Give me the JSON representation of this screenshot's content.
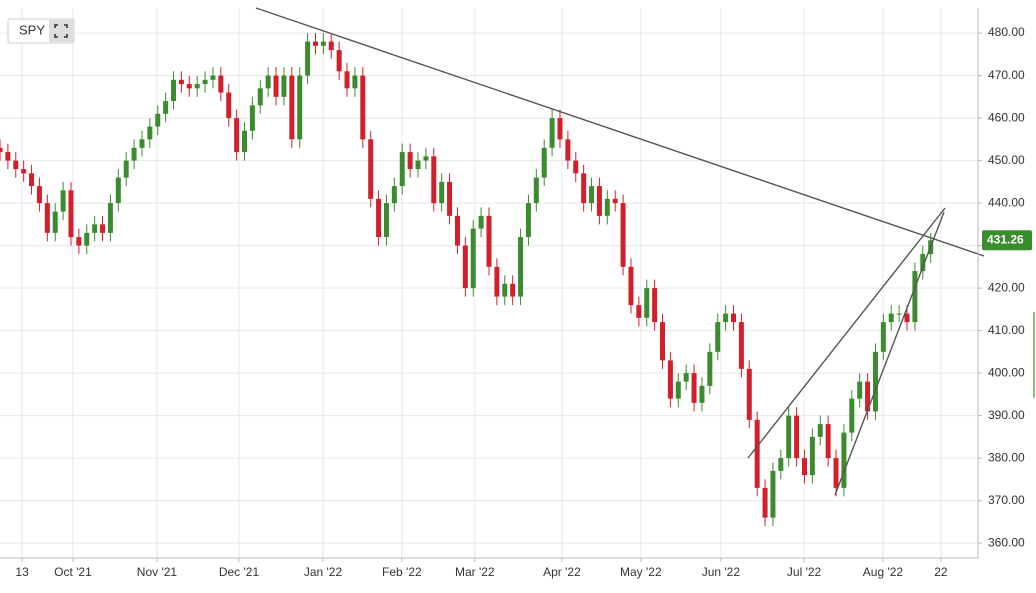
{
  "chart_data": {
    "type": "candlestick",
    "symbol": "SPY",
    "x": [
      0,
      2,
      4,
      6,
      8,
      10,
      12,
      14,
      16,
      18,
      20,
      22,
      24,
      26,
      28,
      30,
      32,
      34,
      36,
      38,
      40,
      42,
      44,
      46,
      48,
      50,
      52,
      54,
      56,
      58,
      60,
      62,
      64,
      66,
      68,
      70,
      72,
      74,
      76,
      78,
      80,
      82,
      84,
      86,
      88,
      90,
      92,
      94,
      96,
      98,
      100,
      102,
      104,
      106,
      108,
      110,
      112,
      114,
      116,
      118,
      120,
      122,
      124,
      126,
      128,
      130,
      132,
      134,
      136,
      138,
      140,
      142,
      144,
      146,
      148,
      150,
      152,
      154,
      156,
      158,
      160,
      162,
      164,
      166,
      168,
      170,
      172,
      174,
      176,
      178,
      180,
      182,
      184,
      186,
      188,
      190,
      192,
      194,
      196,
      198,
      200,
      202,
      204,
      206,
      208,
      210,
      212,
      214,
      216,
      218,
      220,
      222,
      224,
      226,
      228,
      230,
      232,
      234,
      236
    ],
    "open": [
      453,
      452,
      450,
      448,
      447,
      444,
      440,
      433,
      438,
      443,
      432,
      430,
      433,
      435,
      433,
      440,
      446,
      450,
      453,
      455,
      458,
      461,
      464,
      469,
      468,
      467,
      468,
      469,
      470,
      466,
      460,
      452,
      457,
      463,
      467,
      470,
      465,
      470,
      455,
      470,
      478,
      477,
      478,
      476,
      471,
      467,
      470,
      455,
      441,
      432,
      440,
      444,
      452,
      448,
      450,
      451,
      440,
      445,
      437,
      430,
      420,
      434,
      437,
      425,
      418,
      421,
      418,
      432,
      440,
      446,
      453,
      460,
      455,
      450,
      447,
      440,
      444,
      437,
      441,
      440,
      425,
      416,
      413,
      420,
      412,
      403,
      394,
      398,
      400,
      393,
      397,
      405,
      412,
      414,
      412,
      401,
      389,
      373,
      366,
      377,
      380,
      390,
      380,
      376,
      385,
      388,
      380,
      373,
      386,
      394,
      398,
      391,
      405,
      412,
      414,
      414,
      412,
      424,
      428
    ],
    "high": [
      455,
      454,
      452,
      450,
      449,
      446,
      442,
      440,
      445,
      445,
      434,
      435,
      437,
      437,
      442,
      448,
      452,
      455,
      457,
      460,
      463,
      466,
      471,
      471,
      470,
      470,
      471,
      472,
      472,
      468,
      462,
      459,
      465,
      469,
      472,
      472,
      472,
      472,
      472,
      480,
      480,
      480,
      480,
      478,
      473,
      472,
      472,
      457,
      443,
      442,
      446,
      454,
      454,
      452,
      453,
      453,
      447,
      447,
      439,
      432,
      436,
      439,
      439,
      427,
      423,
      423,
      434,
      442,
      448,
      455,
      462,
      462,
      457,
      452,
      449,
      446,
      446,
      443,
      443,
      442,
      427,
      418,
      422,
      422,
      414,
      405,
      400,
      402,
      402,
      399,
      407,
      414,
      416,
      416,
      414,
      403,
      391,
      375,
      379,
      382,
      392,
      392,
      382,
      387,
      390,
      390,
      382,
      388,
      396,
      400,
      400,
      407,
      414,
      416,
      416,
      416,
      426,
      430,
      433
    ],
    "low": [
      450,
      448,
      446,
      445,
      442,
      438,
      431,
      431,
      436,
      430,
      428,
      428,
      431,
      431,
      431,
      438,
      444,
      448,
      451,
      453,
      456,
      459,
      462,
      466,
      465,
      465,
      466,
      467,
      464,
      458,
      450,
      450,
      455,
      461,
      465,
      463,
      463,
      453,
      453,
      468,
      475,
      475,
      474,
      469,
      465,
      465,
      453,
      439,
      430,
      430,
      438,
      442,
      446,
      446,
      448,
      438,
      438,
      435,
      428,
      418,
      418,
      432,
      423,
      416,
      416,
      416,
      416,
      430,
      438,
      444,
      451,
      453,
      448,
      445,
      438,
      438,
      435,
      435,
      438,
      423,
      414,
      411,
      411,
      410,
      401,
      392,
      392,
      396,
      391,
      391,
      395,
      403,
      410,
      410,
      399,
      387,
      371,
      364,
      364,
      375,
      378,
      378,
      374,
      374,
      383,
      378,
      371,
      371,
      384,
      392,
      389,
      389,
      403,
      410,
      412,
      410,
      410,
      422,
      426
    ],
    "close": [
      452,
      450,
      448,
      447,
      444,
      440,
      433,
      438,
      443,
      432,
      430,
      433,
      435,
      433,
      440,
      446,
      450,
      453,
      455,
      458,
      461,
      464,
      469,
      468,
      467,
      468,
      469,
      470,
      466,
      460,
      452,
      457,
      463,
      467,
      470,
      465,
      470,
      455,
      470,
      478,
      477,
      478,
      476,
      471,
      467,
      470,
      455,
      441,
      432,
      440,
      444,
      452,
      448,
      450,
      451,
      440,
      445,
      437,
      430,
      420,
      434,
      437,
      425,
      418,
      421,
      418,
      432,
      440,
      446,
      453,
      460,
      455,
      450,
      447,
      440,
      444,
      437,
      441,
      440,
      425,
      416,
      413,
      420,
      412,
      403,
      394,
      398,
      400,
      393,
      397,
      405,
      412,
      414,
      412,
      401,
      389,
      373,
      366,
      377,
      380,
      390,
      380,
      376,
      385,
      388,
      380,
      373,
      386,
      394,
      398,
      391,
      405,
      412,
      414,
      414,
      412,
      424,
      428,
      431.26
    ],
    "up_color": "#3b8c2f",
    "down_color": "#d1202c",
    "last_price": 431.26,
    "xlim": [
      0,
      248
    ],
    "xticks": [
      {
        "value": 5.6,
        "label": "13"
      },
      {
        "value": 18.5,
        "label": "Oct '21"
      },
      {
        "value": 39.8,
        "label": "Nov '21"
      },
      {
        "value": 60.6,
        "label": "Dec '21"
      },
      {
        "value": 81.9,
        "label": "Jan '22"
      },
      {
        "value": 101.9,
        "label": "Feb '22"
      },
      {
        "value": 120.4,
        "label": "Mar '22"
      },
      {
        "value": 142.5,
        "label": "Apr '22"
      },
      {
        "value": 162.5,
        "label": "May '22"
      },
      {
        "value": 182.8,
        "label": "Jun '22"
      },
      {
        "value": 203.9,
        "label": "Jul '22"
      },
      {
        "value": 223.9,
        "label": "Aug '22"
      },
      {
        "value": 238.6,
        "label": "22"
      }
    ],
    "ylim": [
      356.5,
      485.9
    ],
    "yticks": [
      {
        "value": 360,
        "label": "360.00"
      },
      {
        "value": 370,
        "label": "370.00"
      },
      {
        "value": 380,
        "label": "380.00"
      },
      {
        "value": 390,
        "label": "390.00"
      },
      {
        "value": 400,
        "label": "400.00"
      },
      {
        "value": 410,
        "label": "410.00"
      },
      {
        "value": 420,
        "label": "420.00"
      },
      {
        "value": 430,
        "label": "430.00"
      },
      {
        "value": 440,
        "label": "440.00"
      },
      {
        "value": 450,
        "label": "450.00"
      },
      {
        "value": 460,
        "label": "460.00"
      },
      {
        "value": 470,
        "label": "470.00"
      },
      {
        "value": 480,
        "label": "480.00"
      }
    ],
    "grid": true
  }
}
